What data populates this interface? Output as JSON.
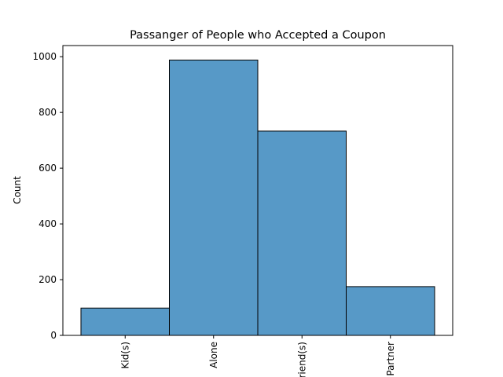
{
  "chart_data": {
    "type": "bar",
    "title": "Passanger of People who Accepted a Coupon",
    "xlabel": "",
    "ylabel": "Count",
    "categories": [
      "Kid(s)",
      "Alone",
      "Friend(s)",
      "Partner"
    ],
    "values": [
      98,
      988,
      733,
      175
    ],
    "ylim": [
      0,
      1040
    ],
    "yticks": [
      0,
      200,
      400,
      600,
      800,
      1000
    ],
    "bar_color": "#5799c7",
    "grid": false,
    "x_tick_rotation": 90
  }
}
